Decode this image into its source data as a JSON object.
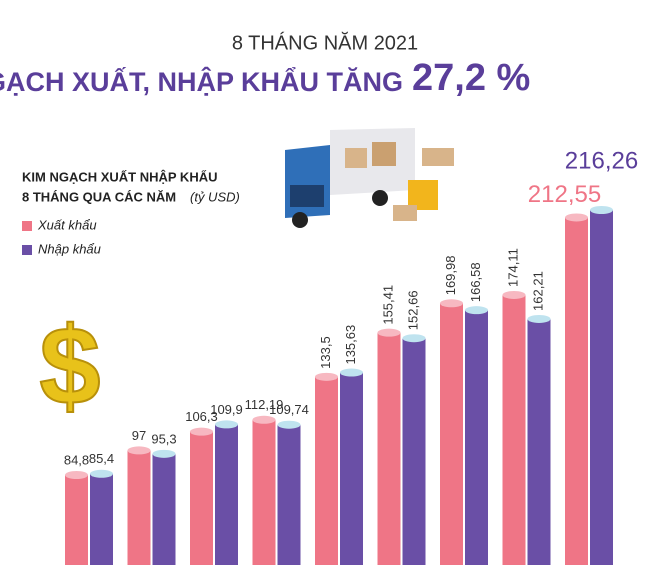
{
  "chart_data": {
    "type": "bar",
    "supertitle": "8 THÁNG NĂM 2021",
    "title": "KIM NGẠCH XUẤT, NHẬP KHẨU TĂNG",
    "title_highlight": "27,2 %",
    "subtitle_line1": "KIM NGẠCH XUẤT NHẬP KHẨU",
    "subtitle_line2": "8 THÁNG QUA CÁC NĂM",
    "unit": "(tỷ USD)",
    "categories": [
      null,
      null,
      null,
      null,
      null,
      null,
      null,
      null,
      null
    ],
    "series": [
      {
        "name": "Xuất khẩu",
        "color": "#ef7586",
        "values": [
          84.8,
          97,
          106.3,
          112.19,
          133.5,
          155.41,
          169.98,
          174.11,
          212.55
        ],
        "value_labels": [
          "84,8",
          "97",
          "106,3",
          "112,19",
          "133,5",
          "155,41",
          "169,98",
          "174,11",
          "212,55"
        ]
      },
      {
        "name": "Nhập khẩu",
        "color": "#6a4fa6",
        "values": [
          85.4,
          95.3,
          109.9,
          109.74,
          135.63,
          152.66,
          166.58,
          162.21,
          216.26
        ],
        "value_labels": [
          "85,4",
          "95,3",
          "109,9",
          "109,74",
          "135,63",
          "152,66",
          "166,58",
          "162,21",
          "216,26"
        ]
      }
    ]
  }
}
